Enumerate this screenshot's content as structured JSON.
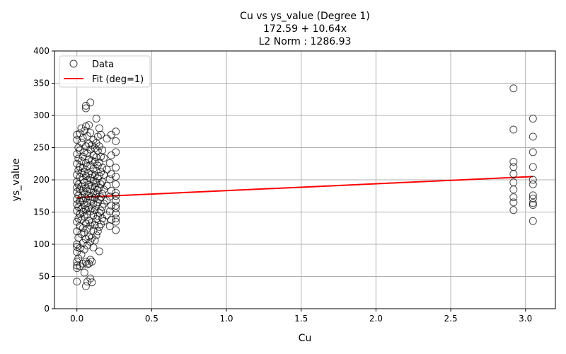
{
  "chart_data": {
    "type": "scatter",
    "title_lines": [
      "Cu vs ys_value (Degree 1)",
      "172.59 + 10.64x",
      "L2 Norm : 1286.93"
    ],
    "xlabel": "Cu",
    "ylabel": "ys_value",
    "xlim": [
      -0.15,
      3.2
    ],
    "ylim": [
      0,
      400
    ],
    "xticks": [
      "0.0",
      "0.5",
      "1.0",
      "1.5",
      "2.0",
      "2.5",
      "3.0"
    ],
    "yticks": [
      "0",
      "50",
      "100",
      "150",
      "200",
      "250",
      "300",
      "350",
      "400"
    ],
    "grid": true,
    "legend_position": "top-left",
    "fit": {
      "intercept": 172.59,
      "slope": 10.64,
      "color": "#ff0000"
    },
    "marker_color": "#000000",
    "series": [
      {
        "name": "Data",
        "points": [
          [
            0.0,
            42
          ],
          [
            0.0,
            63
          ],
          [
            0.0,
            67
          ],
          [
            0.0,
            73
          ],
          [
            0.0,
            88
          ],
          [
            0.0,
            96
          ],
          [
            0.0,
            100
          ],
          [
            0.0,
            120
          ],
          [
            0.0,
            135
          ],
          [
            0.0,
            152
          ],
          [
            0.0,
            162
          ],
          [
            0.0,
            170
          ],
          [
            0.0,
            181
          ],
          [
            0.0,
            188
          ],
          [
            0.0,
            197
          ],
          [
            0.0,
            208
          ],
          [
            0.0,
            225
          ],
          [
            0.0,
            240
          ],
          [
            0.0,
            262
          ],
          [
            0.0,
            270
          ],
          [
            0.01,
            78
          ],
          [
            0.01,
            110
          ],
          [
            0.01,
            140
          ],
          [
            0.01,
            158
          ],
          [
            0.01,
            176
          ],
          [
            0.01,
            193
          ],
          [
            0.01,
            215
          ],
          [
            0.01,
            233
          ],
          [
            0.01,
            250
          ],
          [
            0.02,
            66
          ],
          [
            0.02,
            94
          ],
          [
            0.02,
            128
          ],
          [
            0.02,
            147
          ],
          [
            0.02,
            166
          ],
          [
            0.02,
            185
          ],
          [
            0.02,
            204
          ],
          [
            0.02,
            220
          ],
          [
            0.02,
            246
          ],
          [
            0.02,
            272
          ],
          [
            0.03,
            84
          ],
          [
            0.03,
            116
          ],
          [
            0.03,
            138
          ],
          [
            0.03,
            155
          ],
          [
            0.03,
            172
          ],
          [
            0.03,
            190
          ],
          [
            0.03,
            211
          ],
          [
            0.03,
            229
          ],
          [
            0.03,
            258
          ],
          [
            0.03,
            280
          ],
          [
            0.04,
            70
          ],
          [
            0.04,
            102
          ],
          [
            0.04,
            125
          ],
          [
            0.04,
            150
          ],
          [
            0.04,
            168
          ],
          [
            0.04,
            183
          ],
          [
            0.04,
            200
          ],
          [
            0.04,
            218
          ],
          [
            0.04,
            236
          ],
          [
            0.04,
            265
          ],
          [
            0.05,
            56
          ],
          [
            0.05,
            92
          ],
          [
            0.05,
            118
          ],
          [
            0.05,
            143
          ],
          [
            0.05,
            161
          ],
          [
            0.05,
            178
          ],
          [
            0.05,
            196
          ],
          [
            0.05,
            213
          ],
          [
            0.05,
            243
          ],
          [
            0.05,
            276
          ],
          [
            0.06,
            35
          ],
          [
            0.06,
            73
          ],
          [
            0.06,
            108
          ],
          [
            0.06,
            132
          ],
          [
            0.06,
            154
          ],
          [
            0.06,
            171
          ],
          [
            0.06,
            187
          ],
          [
            0.06,
            206
          ],
          [
            0.06,
            226
          ],
          [
            0.06,
            252
          ],
          [
            0.06,
            283
          ],
          [
            0.06,
            311
          ],
          [
            0.06,
            315
          ],
          [
            0.07,
            42
          ],
          [
            0.07,
            69
          ],
          [
            0.07,
            98
          ],
          [
            0.07,
            124
          ],
          [
            0.07,
            146
          ],
          [
            0.07,
            164
          ],
          [
            0.07,
            182
          ],
          [
            0.07,
            199
          ],
          [
            0.07,
            221
          ],
          [
            0.07,
            241
          ],
          [
            0.07,
            268
          ],
          [
            0.08,
            70
          ],
          [
            0.08,
            112
          ],
          [
            0.08,
            137
          ],
          [
            0.08,
            157
          ],
          [
            0.08,
            175
          ],
          [
            0.08,
            192
          ],
          [
            0.08,
            210
          ],
          [
            0.08,
            232
          ],
          [
            0.08,
            256
          ],
          [
            0.08,
            285
          ],
          [
            0.09,
            47
          ],
          [
            0.09,
            76
          ],
          [
            0.09,
            104
          ],
          [
            0.09,
            129
          ],
          [
            0.09,
            151
          ],
          [
            0.09,
            169
          ],
          [
            0.09,
            186
          ],
          [
            0.09,
            203
          ],
          [
            0.09,
            223
          ],
          [
            0.09,
            247
          ],
          [
            0.09,
            273
          ],
          [
            0.09,
            320
          ],
          [
            0.1,
            41
          ],
          [
            0.1,
            73
          ],
          [
            0.1,
            110
          ],
          [
            0.1,
            134
          ],
          [
            0.1,
            156
          ],
          [
            0.1,
            174
          ],
          [
            0.1,
            191
          ],
          [
            0.1,
            209
          ],
          [
            0.1,
            230
          ],
          [
            0.1,
            254
          ],
          [
            0.11,
            95
          ],
          [
            0.11,
            121
          ],
          [
            0.11,
            145
          ],
          [
            0.11,
            163
          ],
          [
            0.11,
            180
          ],
          [
            0.11,
            198
          ],
          [
            0.11,
            217
          ],
          [
            0.11,
            238
          ],
          [
            0.11,
            262
          ],
          [
            0.12,
            106
          ],
          [
            0.12,
            130
          ],
          [
            0.12,
            153
          ],
          [
            0.12,
            172
          ],
          [
            0.12,
            189
          ],
          [
            0.12,
            207
          ],
          [
            0.12,
            228
          ],
          [
            0.12,
            249
          ],
          [
            0.13,
            114
          ],
          [
            0.13,
            139
          ],
          [
            0.13,
            160
          ],
          [
            0.13,
            177
          ],
          [
            0.13,
            195
          ],
          [
            0.13,
            214
          ],
          [
            0.13,
            235
          ],
          [
            0.13,
            257
          ],
          [
            0.13,
            295
          ],
          [
            0.14,
            120
          ],
          [
            0.14,
            144
          ],
          [
            0.14,
            165
          ],
          [
            0.14,
            184
          ],
          [
            0.14,
            202
          ],
          [
            0.14,
            222
          ],
          [
            0.14,
            245
          ],
          [
            0.14,
            267
          ],
          [
            0.15,
            89
          ],
          [
            0.15,
            127
          ],
          [
            0.15,
            149
          ],
          [
            0.15,
            170
          ],
          [
            0.15,
            188
          ],
          [
            0.15,
            206
          ],
          [
            0.15,
            227
          ],
          [
            0.15,
            252
          ],
          [
            0.15,
            280
          ],
          [
            0.16,
            131
          ],
          [
            0.16,
            152
          ],
          [
            0.16,
            173
          ],
          [
            0.16,
            193
          ],
          [
            0.16,
            212
          ],
          [
            0.16,
            236
          ],
          [
            0.16,
            270
          ],
          [
            0.17,
            140
          ],
          [
            0.17,
            158
          ],
          [
            0.17,
            178
          ],
          [
            0.17,
            197
          ],
          [
            0.17,
            219
          ],
          [
            0.17,
            246
          ],
          [
            0.18,
            136
          ],
          [
            0.18,
            163
          ],
          [
            0.18,
            185
          ],
          [
            0.18,
            208
          ],
          [
            0.18,
            234
          ],
          [
            0.2,
            145
          ],
          [
            0.2,
            168
          ],
          [
            0.2,
            191
          ],
          [
            0.2,
            216
          ],
          [
            0.2,
            264
          ],
          [
            0.22,
            128
          ],
          [
            0.22,
            151
          ],
          [
            0.22,
            174
          ],
          [
            0.22,
            201
          ],
          [
            0.22,
            226
          ],
          [
            0.23,
            138
          ],
          [
            0.23,
            160
          ],
          [
            0.23,
            183
          ],
          [
            0.23,
            209
          ],
          [
            0.23,
            238
          ],
          [
            0.23,
            270
          ],
          [
            0.26,
            122
          ],
          [
            0.26,
            135
          ],
          [
            0.26,
            140
          ],
          [
            0.26,
            148
          ],
          [
            0.26,
            156
          ],
          [
            0.26,
            160
          ],
          [
            0.26,
            168
          ],
          [
            0.26,
            175
          ],
          [
            0.26,
            180
          ],
          [
            0.26,
            193
          ],
          [
            0.26,
            205
          ],
          [
            0.26,
            219
          ],
          [
            0.26,
            243
          ],
          [
            0.26,
            260
          ],
          [
            0.26,
            275
          ],
          [
            2.92,
            342
          ],
          [
            2.92,
            278
          ],
          [
            2.92,
            228
          ],
          [
            2.92,
            220
          ],
          [
            2.92,
            209
          ],
          [
            2.92,
            196
          ],
          [
            2.92,
            185
          ],
          [
            2.92,
            173
          ],
          [
            2.92,
            165
          ],
          [
            2.92,
            153
          ],
          [
            3.05,
            295
          ],
          [
            3.05,
            267
          ],
          [
            3.05,
            243
          ],
          [
            3.05,
            220
          ],
          [
            3.05,
            200
          ],
          [
            3.05,
            193
          ],
          [
            3.05,
            176
          ],
          [
            3.05,
            171
          ],
          [
            3.05,
            164
          ],
          [
            3.05,
            161
          ],
          [
            3.05,
            136
          ]
        ]
      },
      {
        "name": "Fit (deg=1)"
      }
    ]
  }
}
